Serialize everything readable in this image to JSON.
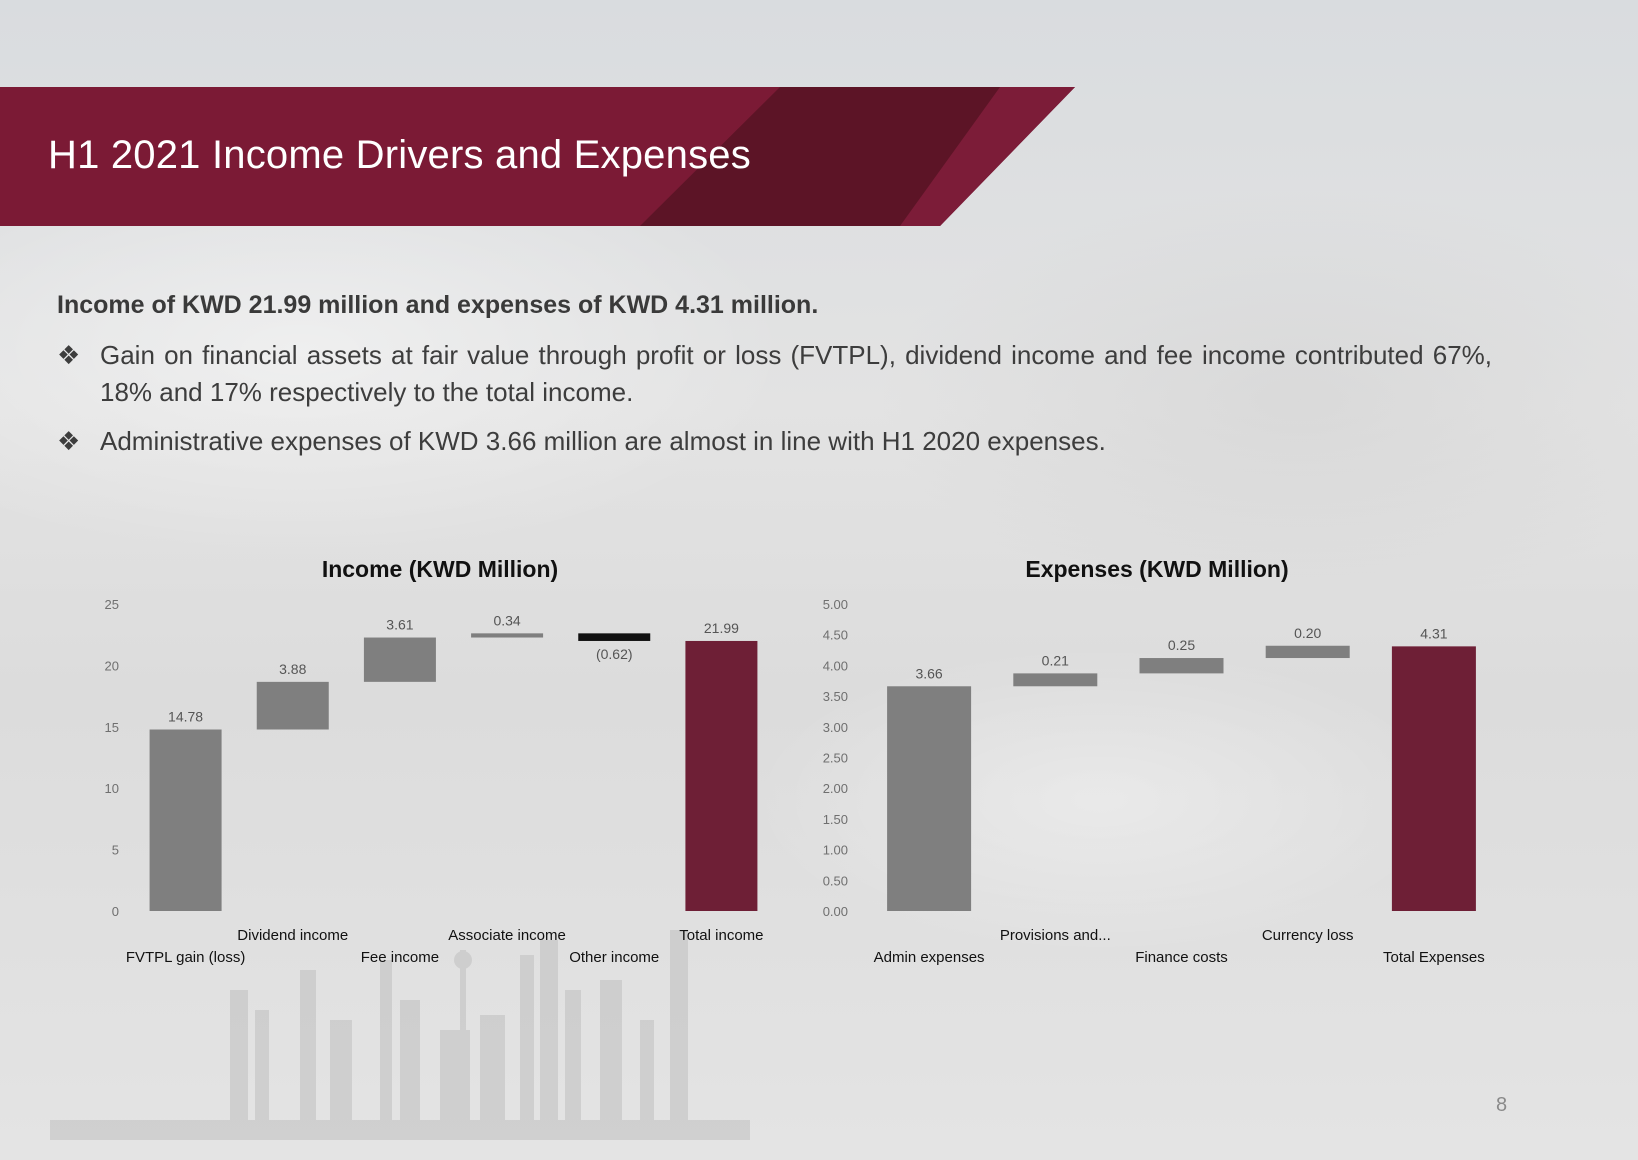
{
  "slide": {
    "title": "H1 2021 Income Drivers and Expenses",
    "headline": "Income of KWD 21.99 million and expenses of KWD 4.31 million.",
    "bullets": [
      "Gain on financial assets at fair value through profit or loss (FVTPL), dividend income and fee income contributed 67%, 18% and 17% respectively to the total income.",
      "Administrative expenses of KWD 3.66 million are almost in line with H1 2020 expenses."
    ],
    "bullet_mark": "❖",
    "page_number": "8",
    "colors": {
      "banner": "#7b1a35",
      "banner_dark": "#5c1426",
      "bar_gray": "#7f7f7f",
      "bar_total": "#6e1f36",
      "bar_negative": "#111111"
    }
  },
  "chart_data": [
    {
      "type": "bar",
      "subtype": "waterfall",
      "title": "Income (KWD Million)",
      "categories": [
        "FVTPL gain (loss)",
        "Dividend income",
        "Fee income",
        "Associate income",
        "Other income",
        "Total income"
      ],
      "values": [
        14.78,
        3.88,
        3.61,
        0.34,
        -0.62,
        21.99
      ],
      "value_labels": [
        "14.78",
        "3.88",
        "3.61",
        "0.34",
        "(0.62)",
        "21.99"
      ],
      "total_index": 5,
      "ylim": [
        0,
        25
      ],
      "yticks": [
        "0",
        "5",
        "10",
        "15",
        "20",
        "25"
      ],
      "grid": false
    },
    {
      "type": "bar",
      "subtype": "waterfall",
      "title": "Expenses (KWD Million)",
      "categories": [
        "Admin expenses",
        "Provisions and...",
        "Finance costs",
        "Currency loss",
        "Total Expenses"
      ],
      "values": [
        3.66,
        0.21,
        0.25,
        0.2,
        4.31
      ],
      "value_labels": [
        "3.66",
        "0.21",
        "0.25",
        "0.20",
        "4.31"
      ],
      "total_index": 4,
      "ylim": [
        0,
        5
      ],
      "yticks": [
        "0.00",
        "0.50",
        "1.00",
        "1.50",
        "2.00",
        "2.50",
        "3.00",
        "3.50",
        "4.00",
        "4.50",
        "5.00"
      ],
      "grid": false
    }
  ]
}
